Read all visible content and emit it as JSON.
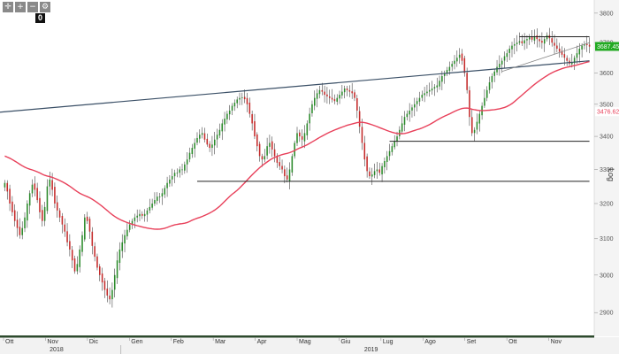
{
  "toolbar": {
    "icons": [
      "crosshair-icon",
      "zoom-in-icon",
      "zoom-out-icon",
      "settings-icon"
    ],
    "badge": "0"
  },
  "chart_data": {
    "type": "candlestick",
    "scale": "log",
    "grid": false,
    "ylim": [
      2850,
      3830
    ],
    "y_ticks": [
      2900,
      3000,
      3100,
      3200,
      3300,
      3400,
      3500,
      3600,
      3700,
      3800
    ],
    "y_tick_labels": [
      "2900",
      "3000",
      "3100",
      "3200",
      "3300",
      "3400",
      "3500",
      "3600",
      "3700",
      "3800"
    ],
    "yaxis_label": "Log",
    "x_months": [
      "Ott",
      "Nov",
      "Dic",
      "Gen",
      "Feb",
      "Mar",
      "Apr",
      "Mag",
      "Giu",
      "Lug",
      "Ago",
      "Set",
      "Ott",
      "Nov"
    ],
    "x_years": [
      "2018",
      "2019"
    ],
    "last_price": 3687.45,
    "last_price_label": "3687.4500",
    "ma_value": 3476.6252,
    "ma_label": "3476.6252",
    "colors": {
      "up": "#2a8a2a",
      "down": "#c42a2a",
      "moving_average": "#e8405a",
      "price_badge": "#22aa22",
      "trendline": "#3a4f66"
    },
    "closes": [
      3260,
      3235,
      3200,
      3175,
      3150,
      3130,
      3110,
      3130,
      3160,
      3200,
      3230,
      3255,
      3240,
      3210,
      3175,
      3150,
      3190,
      3250,
      3270,
      3240,
      3200,
      3180,
      3160,
      3140,
      3120,
      3090,
      3070,
      3040,
      3010,
      3030,
      3070,
      3110,
      3160,
      3150,
      3120,
      3080,
      3050,
      3020,
      3000,
      2980,
      2960,
      2945,
      2935,
      2960,
      3000,
      3040,
      3070,
      3090,
      3110,
      3125,
      3140,
      3150,
      3160,
      3165,
      3170,
      3165,
      3170,
      3180,
      3190,
      3200,
      3210,
      3220,
      3220,
      3230,
      3245,
      3260,
      3270,
      3280,
      3290,
      3290,
      3300,
      3300,
      3315,
      3330,
      3350,
      3365,
      3380,
      3395,
      3405,
      3410,
      3390,
      3375,
      3365,
      3375,
      3390,
      3405,
      3420,
      3440,
      3455,
      3470,
      3480,
      3495,
      3505,
      3515,
      3520,
      3522,
      3516,
      3500,
      3470,
      3440,
      3400,
      3370,
      3340,
      3330,
      3340,
      3370,
      3380,
      3360,
      3340,
      3320,
      3310,
      3300,
      3280,
      3270,
      3300,
      3340,
      3380,
      3410,
      3400,
      3390,
      3410,
      3440,
      3470,
      3500,
      3520,
      3535,
      3545,
      3540,
      3530,
      3525,
      3520,
      3515,
      3510,
      3520,
      3530,
      3540,
      3550,
      3545,
      3540,
      3535,
      3520,
      3480,
      3430,
      3380,
      3330,
      3295,
      3280,
      3285,
      3295,
      3300,
      3290,
      3310,
      3325,
      3340,
      3355,
      3370,
      3385,
      3400,
      3420,
      3440,
      3460,
      3470,
      3480,
      3490,
      3500,
      3510,
      3520,
      3530,
      3535,
      3540,
      3545,
      3550,
      3555,
      3560,
      3575,
      3590,
      3600,
      3610,
      3620,
      3630,
      3640,
      3650,
      3660,
      3640,
      3600,
      3545,
      3460,
      3410,
      3420,
      3445,
      3470,
      3495,
      3520,
      3545,
      3570,
      3590,
      3605,
      3620,
      3630,
      3640,
      3655,
      3665,
      3680,
      3690,
      3695,
      3700,
      3705,
      3698,
      3708,
      3712,
      3718,
      3710,
      3722,
      3712,
      3705,
      3700,
      3712,
      3725,
      3715,
      3700,
      3690,
      3680,
      3670,
      3660,
      3650,
      3640,
      3630,
      3635,
      3650,
      3665,
      3680,
      3690,
      3695,
      3692,
      3687
    ]
  }
}
